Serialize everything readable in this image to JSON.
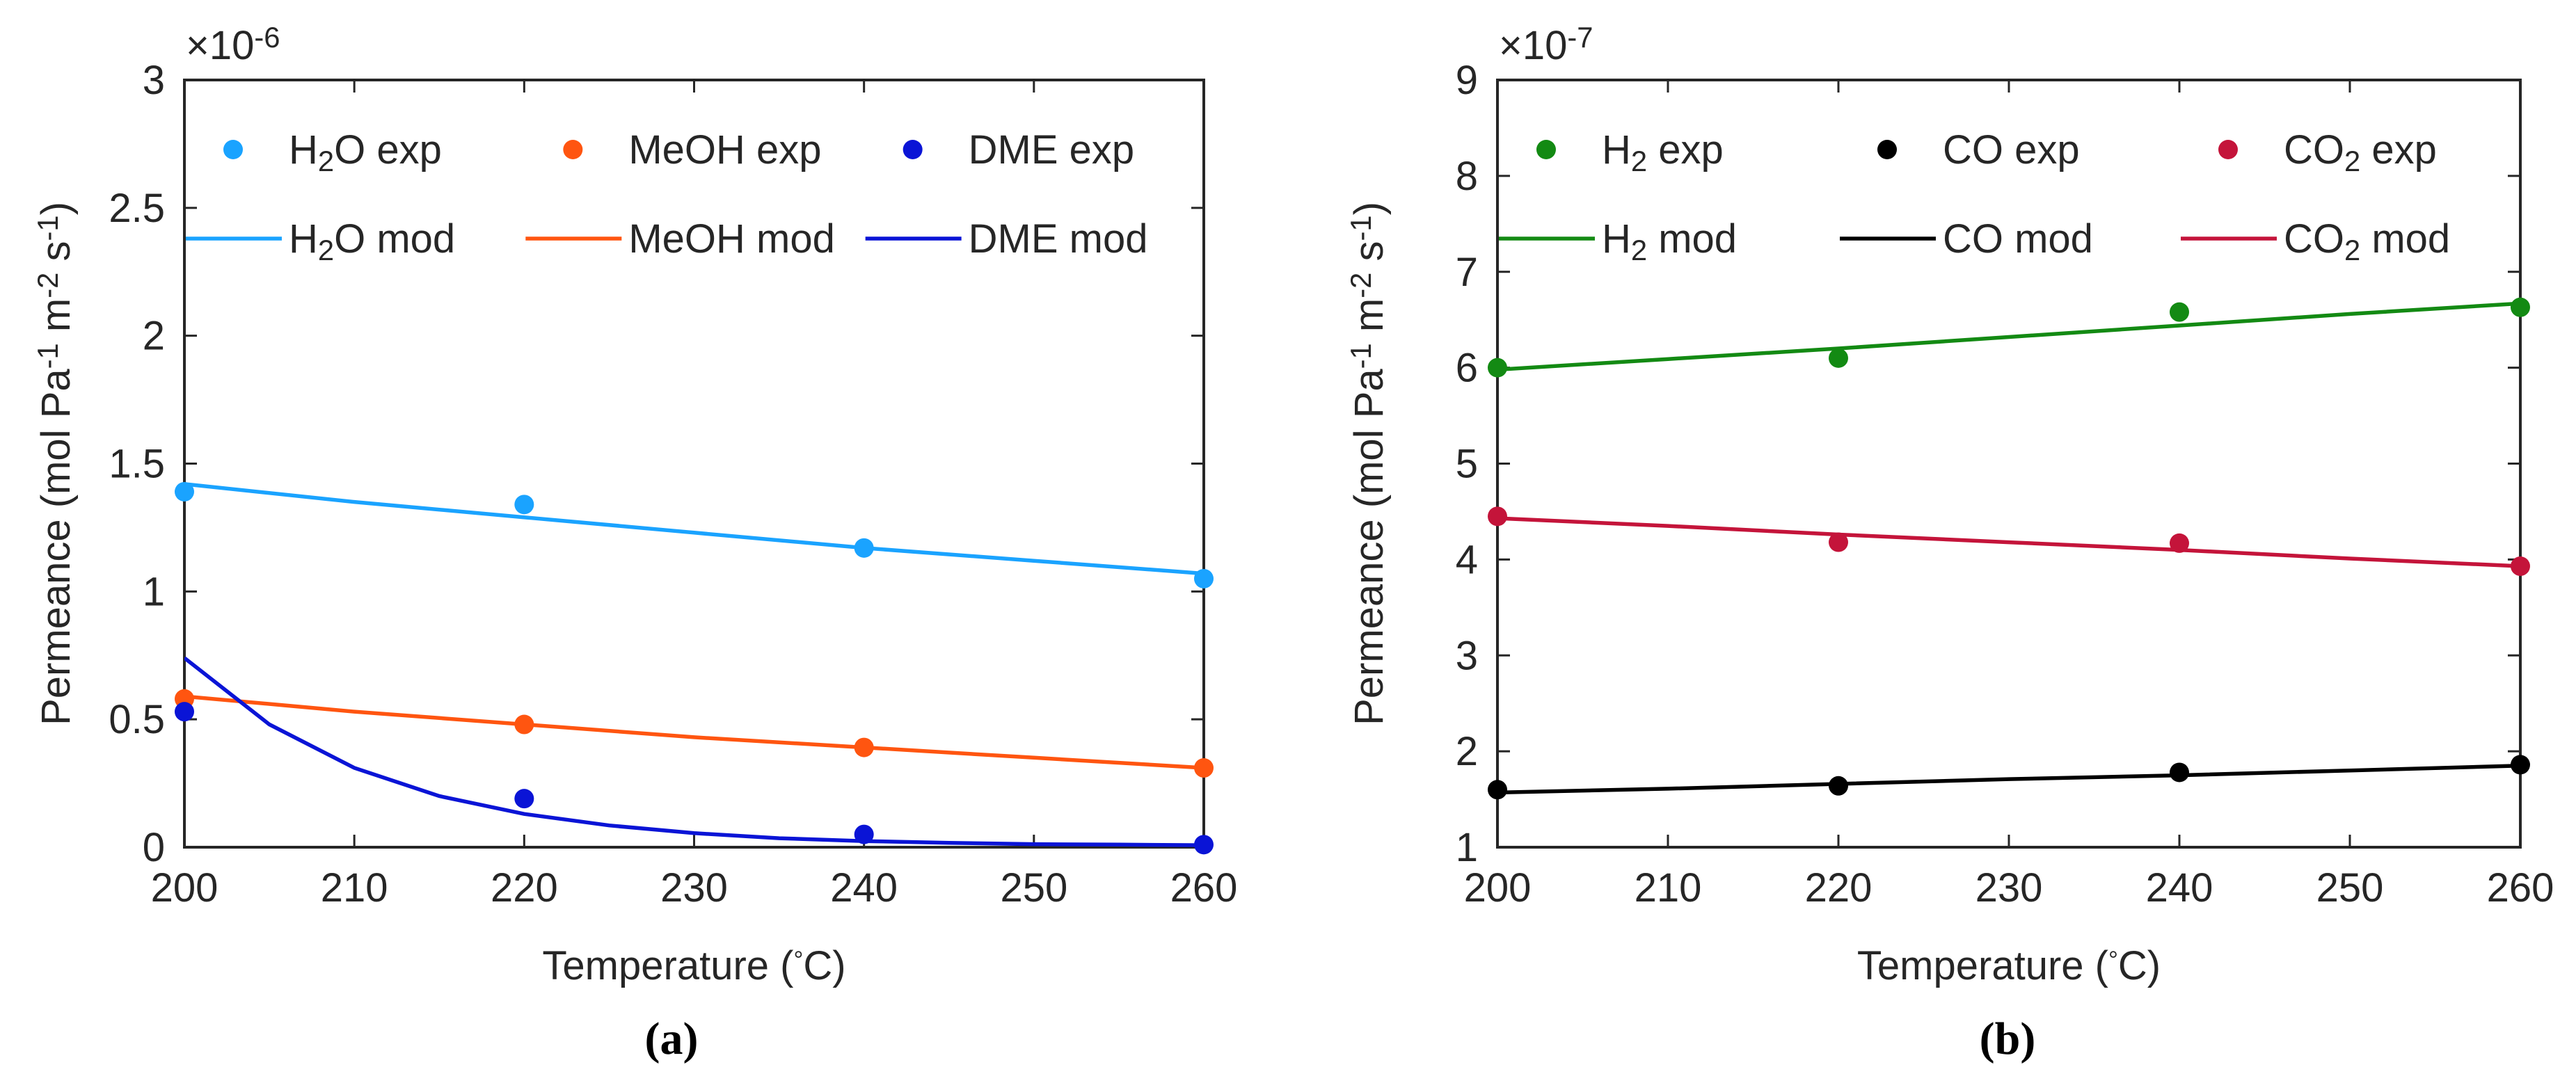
{
  "chart_data": [
    {
      "type": "scatter+line",
      "panel_label": "(a)",
      "xlabel": "Temperature (°C)",
      "ylabel": "Permeance (mol Pa⁻¹ m⁻² s⁻¹)",
      "xlim": [
        200,
        260
      ],
      "ylim": [
        0,
        3
      ],
      "y_multiplier": "×10⁻⁶",
      "x_ticks": [
        200,
        210,
        220,
        230,
        240,
        250,
        260
      ],
      "y_ticks": [
        0,
        0.5,
        1,
        1.5,
        2,
        2.5,
        3
      ],
      "y_tick_labels": [
        "0",
        "0.5",
        "1",
        "1.5",
        "2",
        "2.5",
        "3"
      ],
      "series": [
        {
          "name": "H₂O exp",
          "kind": "scatter",
          "color": "#1aa3ff",
          "x": [
            200,
            220,
            240,
            260
          ],
          "y": [
            1.39,
            1.34,
            1.17,
            1.05
          ]
        },
        {
          "name": "MeOH exp",
          "kind": "scatter",
          "color": "#ff5510",
          "x": [
            200,
            220,
            240,
            260
          ],
          "y": [
            0.58,
            0.48,
            0.39,
            0.31
          ]
        },
        {
          "name": "DME exp",
          "kind": "scatter",
          "color": "#0a14d6",
          "x": [
            200,
            220,
            240,
            260
          ],
          "y": [
            0.53,
            0.19,
            0.05,
            0.01
          ]
        },
        {
          "name": "H₂O mod",
          "kind": "line",
          "color": "#1aa3ff",
          "x": [
            200,
            210,
            220,
            230,
            240,
            250,
            260
          ],
          "y": [
            1.42,
            1.35,
            1.29,
            1.23,
            1.17,
            1.12,
            1.07
          ]
        },
        {
          "name": "MeOH mod",
          "kind": "line",
          "color": "#ff5510",
          "x": [
            200,
            210,
            220,
            230,
            240,
            250,
            260
          ],
          "y": [
            0.59,
            0.53,
            0.48,
            0.43,
            0.39,
            0.35,
            0.31
          ]
        },
        {
          "name": "DME mod",
          "kind": "line",
          "color": "#0a14d6",
          "x": [
            200,
            205,
            210,
            215,
            220,
            225,
            230,
            235,
            240,
            245,
            250,
            255,
            260
          ],
          "y": [
            0.74,
            0.48,
            0.31,
            0.2,
            0.13,
            0.085,
            0.055,
            0.035,
            0.024,
            0.017,
            0.012,
            0.01,
            0.008
          ]
        }
      ],
      "legend": {
        "placement": "top",
        "columns": 3
      }
    },
    {
      "type": "scatter+line",
      "panel_label": "(b)",
      "xlabel": "Temperature (°C)",
      "ylabel": "Permeance (mol Pa⁻¹ m⁻² s⁻¹)",
      "xlim": [
        200,
        260
      ],
      "ylim": [
        1,
        9
      ],
      "y_multiplier": "×10⁻⁷",
      "x_ticks": [
        200,
        210,
        220,
        230,
        240,
        250,
        260
      ],
      "y_ticks": [
        1,
        2,
        3,
        4,
        5,
        6,
        7,
        8,
        9
      ],
      "y_tick_labels": [
        "1",
        "2",
        "3",
        "4",
        "5",
        "6",
        "7",
        "8",
        "9"
      ],
      "series": [
        {
          "name": "H₂ exp",
          "kind": "scatter",
          "color": "#138a13",
          "x": [
            200,
            220,
            240,
            260
          ],
          "y": [
            6.0,
            6.1,
            6.58,
            6.63
          ]
        },
        {
          "name": "CO exp",
          "kind": "scatter",
          "color": "#000000",
          "x": [
            200,
            220,
            240,
            260
          ],
          "y": [
            1.6,
            1.64,
            1.78,
            1.86
          ]
        },
        {
          "name": "CO₂ exp",
          "kind": "scatter",
          "color": "#c4143a",
          "x": [
            200,
            220,
            240,
            260
          ],
          "y": [
            4.45,
            4.18,
            4.17,
            3.93
          ]
        },
        {
          "name": "H₂ mod",
          "kind": "line",
          "color": "#138a13",
          "x": [
            200,
            210,
            220,
            230,
            240,
            250,
            260
          ],
          "y": [
            5.98,
            6.09,
            6.2,
            6.32,
            6.44,
            6.56,
            6.67
          ]
        },
        {
          "name": "CO mod",
          "kind": "line",
          "color": "#000000",
          "x": [
            200,
            210,
            220,
            230,
            240,
            250,
            260
          ],
          "y": [
            1.57,
            1.61,
            1.66,
            1.71,
            1.75,
            1.8,
            1.85
          ]
        },
        {
          "name": "CO₂ mod",
          "kind": "line",
          "color": "#c4143a",
          "x": [
            200,
            210,
            220,
            230,
            240,
            250,
            260
          ],
          "y": [
            4.43,
            4.35,
            4.26,
            4.18,
            4.1,
            4.01,
            3.93
          ]
        }
      ],
      "legend": {
        "placement": "top",
        "columns": 3
      }
    }
  ]
}
